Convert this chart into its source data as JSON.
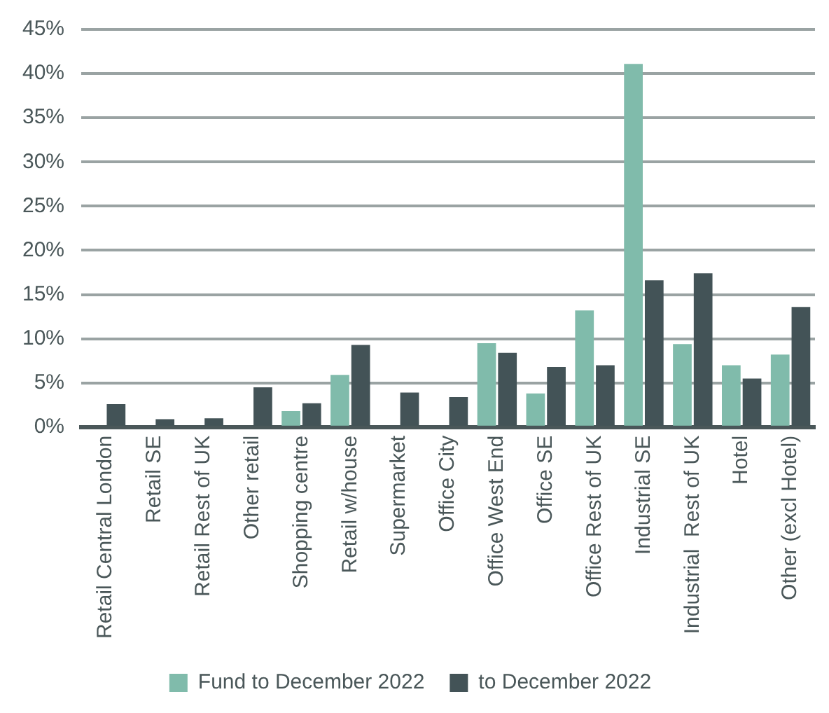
{
  "chart_data": {
    "type": "bar",
    "categories": [
      "Retail Central London",
      "Retail SE",
      "Retail Rest of UK",
      "Other retail",
      "Shopping centre",
      "Retail w/house",
      "Supermarket",
      "Office City",
      "Office West End",
      "Office SE",
      "Office Rest of UK",
      "Industrial SE",
      "Industrial  Rest of UK",
      "Hotel",
      "Other (excl Hotel)"
    ],
    "series": [
      {
        "name": "Fund to December 2022",
        "color": "#80bbab",
        "values": [
          0,
          0,
          0,
          0,
          1.8,
          5.9,
          0,
          0,
          9.5,
          3.8,
          13.2,
          41.1,
          9.4,
          7.0,
          8.2
        ]
      },
      {
        "name": "to December 2022",
        "color": "#435357",
        "values": [
          2.6,
          0.9,
          1.0,
          4.5,
          2.7,
          9.3,
          3.9,
          3.4,
          8.4,
          6.8,
          7.0,
          16.6,
          17.4,
          5.5,
          13.6
        ]
      }
    ],
    "ylim": [
      0,
      45
    ],
    "yticks": [
      {
        "value": 0,
        "label": "0%"
      },
      {
        "value": 5,
        "label": "5%"
      },
      {
        "value": 10,
        "label": "10%"
      },
      {
        "value": 15,
        "label": "15%"
      },
      {
        "value": 20,
        "label": "20%"
      },
      {
        "value": 25,
        "label": "25%"
      },
      {
        "value": 30,
        "label": "30%"
      },
      {
        "value": 35,
        "label": "35%"
      },
      {
        "value": 40,
        "label": "40%"
      },
      {
        "value": 45,
        "label": "45%"
      }
    ],
    "grid": "y",
    "legend": "bottom"
  }
}
